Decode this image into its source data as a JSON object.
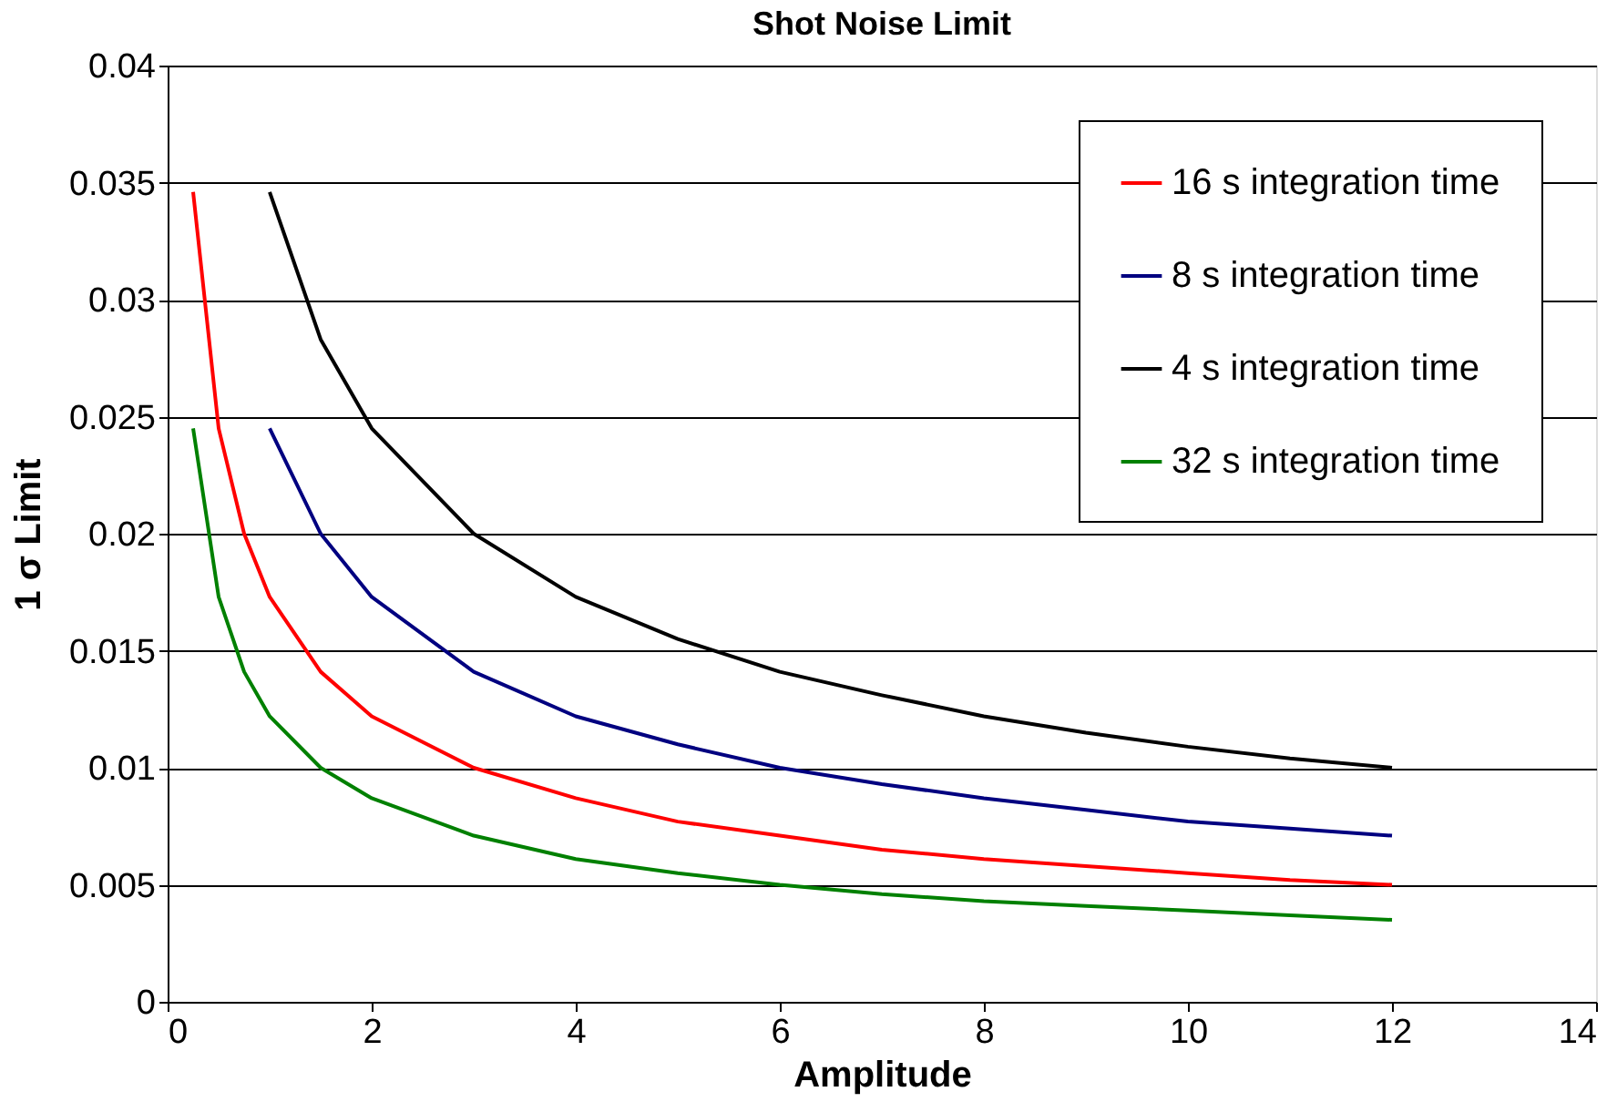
{
  "chart_data": {
    "type": "line",
    "title": "Shot Noise Limit",
    "xlabel": "Amplitude",
    "ylabel": "1 σ Limit",
    "xlim": [
      0,
      14
    ],
    "xticks": [
      0,
      2,
      4,
      6,
      8,
      10,
      12,
      14
    ],
    "ylim": [
      0,
      0.04
    ],
    "yticks": [
      0,
      0.005,
      0.01,
      0.015,
      0.02,
      0.025,
      0.03,
      0.035,
      0.04
    ],
    "grid": "y",
    "legend": "top right",
    "marker": "none",
    "line_style": "solid",
    "series": [
      {
        "name": "16 s integration time",
        "color": "#ff0000",
        "x": [
          0.25,
          0.5,
          0.75,
          1,
          1.5,
          2,
          3,
          4,
          5,
          6,
          7,
          8,
          9,
          10,
          11,
          12
        ],
        "values": [
          0.0346,
          0.0245,
          0.02,
          0.0173,
          0.0141,
          0.0122,
          0.01,
          0.0087,
          0.0077,
          0.0071,
          0.0065,
          0.0061,
          0.0058,
          0.0055,
          0.0052,
          0.005
        ]
      },
      {
        "name": "8 s integration time",
        "color": "#000080",
        "x": [
          1,
          1.5,
          2,
          3,
          4,
          5,
          6,
          7,
          8,
          9,
          10,
          11,
          12
        ],
        "values": [
          0.0245,
          0.02,
          0.0173,
          0.0141,
          0.0122,
          0.011,
          0.01,
          0.0093,
          0.0087,
          0.0082,
          0.0077,
          0.0074,
          0.0071
        ]
      },
      {
        "name": "4 s integration time",
        "color": "#000000",
        "x": [
          1,
          1.5,
          2,
          3,
          4,
          5,
          6,
          7,
          8,
          9,
          10,
          11,
          12
        ],
        "values": [
          0.0346,
          0.0283,
          0.0245,
          0.02,
          0.0173,
          0.0155,
          0.0141,
          0.0131,
          0.0122,
          0.0115,
          0.0109,
          0.0104,
          0.01
        ]
      },
      {
        "name": "32 s integration time",
        "color": "#008000",
        "x": [
          0.25,
          0.5,
          0.75,
          1,
          1.5,
          2,
          3,
          4,
          5,
          6,
          7,
          8,
          9,
          10,
          11,
          12
        ],
        "values": [
          0.0245,
          0.0173,
          0.0141,
          0.0122,
          0.01,
          0.0087,
          0.0071,
          0.0061,
          0.0055,
          0.005,
          0.0046,
          0.0043,
          0.0041,
          0.0039,
          0.0037,
          0.0035
        ]
      }
    ]
  }
}
